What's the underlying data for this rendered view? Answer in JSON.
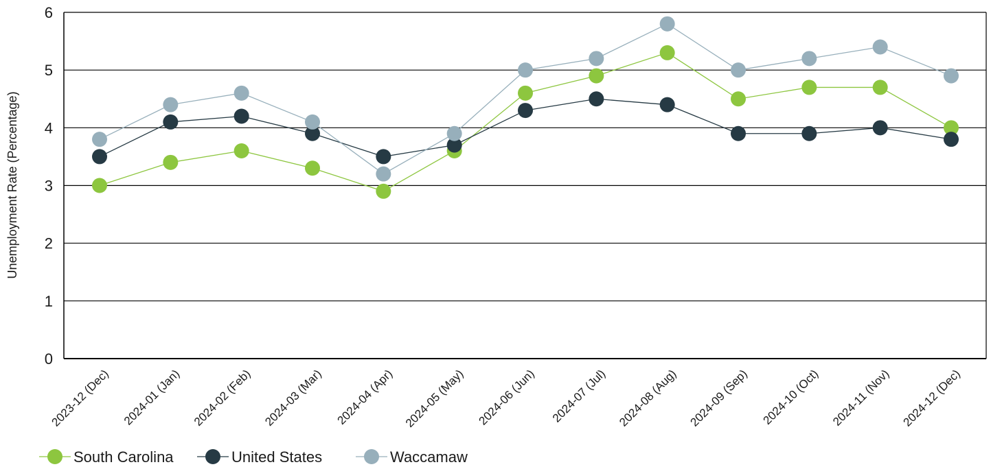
{
  "chart_data": {
    "type": "line",
    "title": "",
    "xlabel": "",
    "ylabel": "Unemployment Rate (Percentage)",
    "ylim": [
      0,
      6
    ],
    "yticks": [
      0,
      1,
      2,
      3,
      4,
      5,
      6
    ],
    "grid": "horizontal",
    "legend_position": "bottom-left",
    "categories": [
      "2023-12 (Dec)",
      "2024-01 (Jan)",
      "2024-02 (Feb)",
      "2024-03 (Mar)",
      "2024-04 (Apr)",
      "2024-05 (May)",
      "2024-06 (Jun)",
      "2024-07 (Jul)",
      "2024-08 (Aug)",
      "2024-09 (Sep)",
      "2024-10 (Oct)",
      "2024-11 (Nov)",
      "2024-12 (Dec)"
    ],
    "series": [
      {
        "name": "South Carolina",
        "color": "#8dc63f",
        "values": [
          3.0,
          3.4,
          3.6,
          3.3,
          2.9,
          3.6,
          4.6,
          4.9,
          5.3,
          4.5,
          4.7,
          4.7,
          4.0
        ]
      },
      {
        "name": "United States",
        "color": "#263a44",
        "values": [
          3.5,
          4.1,
          4.2,
          3.9,
          3.5,
          3.7,
          4.3,
          4.5,
          4.4,
          3.9,
          3.9,
          4.0,
          3.8
        ]
      },
      {
        "name": "Waccamaw",
        "color": "#97afbb",
        "values": [
          3.8,
          4.4,
          4.6,
          4.1,
          3.2,
          3.9,
          5.0,
          5.2,
          5.8,
          5.0,
          5.2,
          5.4,
          4.9
        ]
      }
    ]
  }
}
